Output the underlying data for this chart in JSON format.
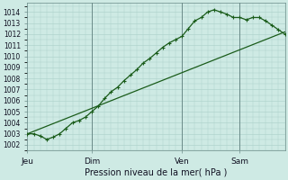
{
  "background_color": "#ceeae4",
  "grid_color": "#aacfc8",
  "line_color": "#1a5c1a",
  "marker_color": "#1a5c1a",
  "xlabel": "Pression niveau de la mer( hPa )",
  "ylim": [
    1001.5,
    1014.8
  ],
  "yticks": [
    1002,
    1003,
    1004,
    1005,
    1006,
    1007,
    1008,
    1009,
    1010,
    1011,
    1012,
    1013,
    1014
  ],
  "xtick_labels": [
    "Jeu",
    "Dim",
    "Ven",
    "Sam"
  ],
  "xtick_positions": [
    0,
    30,
    72,
    99
  ],
  "vline_positions": [
    30,
    72,
    99
  ],
  "xlim": [
    0,
    120
  ],
  "series1_x": [
    0,
    3,
    6,
    9,
    12,
    15,
    18,
    21,
    24,
    27,
    30,
    33,
    36,
    39,
    42,
    45,
    48,
    51,
    54,
    57,
    60,
    63,
    66,
    69,
    72,
    75,
    78,
    81,
    84,
    87,
    90,
    93,
    96,
    99,
    102,
    105,
    108,
    111,
    114,
    117,
    120
  ],
  "series1_y": [
    1003.0,
    1003.0,
    1002.8,
    1002.5,
    1002.7,
    1003.0,
    1003.5,
    1004.0,
    1004.2,
    1004.5,
    1005.0,
    1005.5,
    1006.2,
    1006.8,
    1007.2,
    1007.8,
    1008.3,
    1008.8,
    1009.4,
    1009.8,
    1010.3,
    1010.8,
    1011.2,
    1011.5,
    1011.8,
    1012.5,
    1013.2,
    1013.5,
    1014.0,
    1014.2,
    1014.0,
    1013.8,
    1013.5,
    1013.5,
    1013.3,
    1013.5,
    1013.5,
    1013.2,
    1012.8,
    1012.4,
    1012.0
  ],
  "series2_x": [
    0,
    120
  ],
  "series2_y": [
    1003.0,
    1012.2
  ]
}
